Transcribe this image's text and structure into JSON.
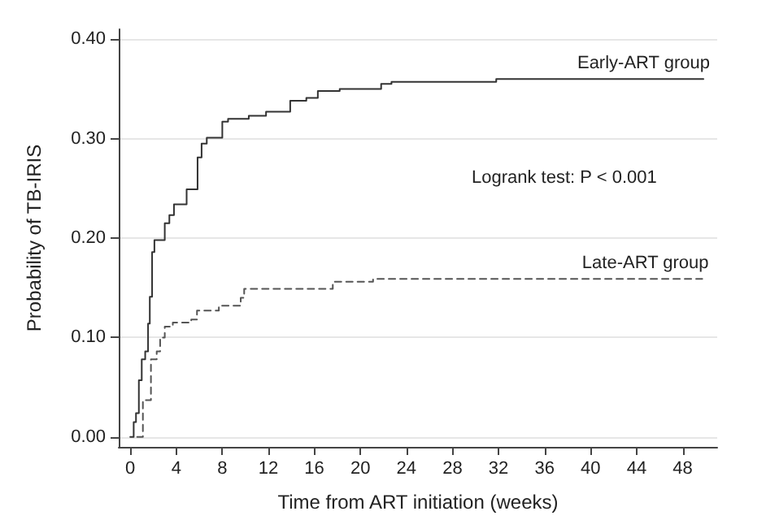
{
  "chart_data": {
    "type": "step",
    "xlabel": "Time from ART initiation (weeks)",
    "ylabel": "Probability of TB-IRIS",
    "xlim": [
      -1,
      51
    ],
    "xticks": [
      0,
      4,
      8,
      12,
      16,
      20,
      24,
      28,
      32,
      36,
      40,
      44,
      48
    ],
    "ylim": [
      -0.01,
      0.41
    ],
    "yticks": [
      {
        "value": 0,
        "label": "0.00"
      },
      {
        "value": 0.1,
        "label": "0.10"
      },
      {
        "value": 0.2,
        "label": "0.20"
      },
      {
        "value": 0.3,
        "label": "0.30"
      },
      {
        "value": 0.4,
        "label": "0.40"
      }
    ],
    "grid": "y",
    "marker": "none",
    "annotations": [
      "Logrank test: P < 0.001"
    ],
    "series": [
      {
        "name": "Early-ART group",
        "color": "#333333",
        "line_style": "solid",
        "x": [
          0,
          0.3,
          0.5,
          0.75,
          1.0,
          1.3,
          1.55,
          1.7,
          1.9,
          2.1,
          3.0,
          3.4,
          3.8,
          4.9,
          5.85,
          6.2,
          6.65,
          8.0,
          8.5,
          10.3,
          11.8,
          13.9,
          15.3,
          16.3,
          18.2,
          21.8,
          22.7,
          31.8,
          49.8
        ],
        "values": [
          0,
          0.015,
          0.024,
          0.057,
          0.078,
          0.086,
          0.114,
          0.141,
          0.186,
          0.198,
          0.215,
          0.223,
          0.234,
          0.249,
          0.281,
          0.295,
          0.301,
          0.317,
          0.32,
          0.323,
          0.327,
          0.338,
          0.341,
          0.348,
          0.35,
          0.355,
          0.357,
          0.36,
          0.36
        ]
      },
      {
        "name": "Late-ART group",
        "color": "#555555",
        "line_style": "dashed",
        "x": [
          0.6,
          1.1,
          1.8,
          2.3,
          2.6,
          3.0,
          3.7,
          5.3,
          5.8,
          7.7,
          9.6,
          9.9,
          17.6,
          21.1,
          49.7
        ],
        "values": [
          0,
          0.037,
          0.078,
          0.086,
          0.1,
          0.111,
          0.115,
          0.118,
          0.127,
          0.132,
          0.14,
          0.149,
          0.156,
          0.159,
          0.159
        ]
      }
    ]
  }
}
